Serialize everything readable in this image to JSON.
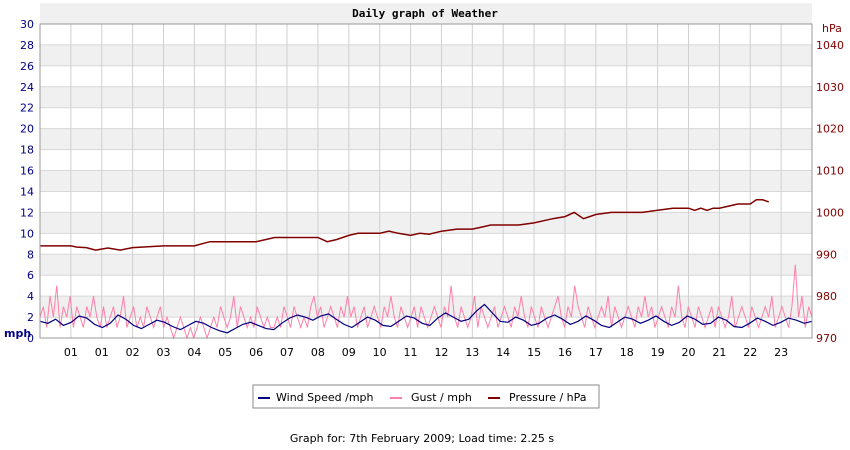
{
  "chart_data": {
    "type": "line",
    "title": "Daily graph of Weather",
    "left_axis": {
      "unit_label": "mph",
      "range": [
        0,
        30
      ],
      "ticks": [
        "0",
        "2",
        "4",
        "6",
        "8",
        "10",
        "12",
        "14",
        "16",
        "18",
        "20",
        "22",
        "24",
        "26",
        "28",
        "30"
      ],
      "color": "#000080"
    },
    "right_axis": {
      "unit_label": "hPa",
      "range": [
        970,
        1045
      ],
      "ticks": [
        "970",
        "980",
        "990",
        "1000",
        "1010",
        "1020",
        "1030",
        "1040"
      ],
      "color": "#800000"
    },
    "x_ticks": [
      "01",
      "01",
      "02",
      "03",
      "04",
      "05",
      "06",
      "07",
      "08",
      "09",
      "10",
      "11",
      "12",
      "13",
      "14",
      "15",
      "16",
      "17",
      "18",
      "19",
      "20",
      "21",
      "22",
      "23"
    ],
    "grid": true,
    "legend_position": "bottom",
    "series": [
      {
        "name": "Wind Speed /mph",
        "axis": "left",
        "color": "#000080",
        "x_range": [
          0,
          25
        ],
        "values": [
          1.6,
          1.4,
          1.8,
          1.2,
          1.5,
          2.1,
          1.9,
          1.3,
          1.0,
          1.4,
          2.2,
          1.8,
          1.2,
          0.9,
          1.3,
          1.7,
          1.5,
          1.1,
          0.8,
          1.2,
          1.6,
          1.4,
          1.0,
          0.7,
          0.5,
          0.9,
          1.3,
          1.5,
          1.2,
          0.9,
          0.8,
          1.4,
          1.9,
          2.2,
          2.0,
          1.7,
          2.1,
          2.3,
          1.8,
          1.3,
          1.0,
          1.5,
          2.0,
          1.7,
          1.2,
          1.1,
          1.6,
          2.1,
          1.9,
          1.4,
          1.2,
          1.9,
          2.4,
          2.0,
          1.6,
          1.8,
          2.6,
          3.2,
          2.4,
          1.6,
          1.5,
          2.0,
          1.7,
          1.2,
          1.4,
          1.9,
          2.2,
          1.8,
          1.3,
          1.6,
          2.1,
          1.7,
          1.2,
          1.0,
          1.5,
          2.0,
          1.8,
          1.4,
          1.7,
          2.1,
          1.6,
          1.2,
          1.5,
          2.1,
          1.8,
          1.3,
          1.4,
          2.0,
          1.7,
          1.1,
          1.0,
          1.4,
          1.9,
          1.6,
          1.2,
          1.5,
          1.9,
          1.7,
          1.4,
          1.6
        ]
      },
      {
        "name": "Gust / mph",
        "axis": "left",
        "color": "#ff7fa8",
        "x_range": [
          0,
          25
        ],
        "values": [
          2,
          3,
          1,
          4,
          2,
          5,
          1,
          3,
          2,
          4,
          1,
          3,
          2,
          1,
          3,
          2,
          4,
          2,
          1,
          3,
          1,
          2,
          3,
          1,
          2,
          4,
          1,
          2,
          3,
          1,
          2,
          1,
          3,
          2,
          1,
          2,
          3,
          1,
          2,
          1,
          0,
          1,
          2,
          1,
          0,
          1,
          0,
          1,
          2,
          1,
          0,
          1,
          2,
          1,
          3,
          2,
          1,
          2,
          4,
          1,
          3,
          2,
          1,
          2,
          1,
          3,
          2,
          1,
          2,
          1,
          1,
          2,
          1,
          3,
          2,
          1,
          3,
          2,
          1,
          2,
          1,
          3,
          4,
          2,
          3,
          1,
          2,
          3,
          2,
          1,
          3,
          2,
          4,
          2,
          3,
          1,
          2,
          3,
          1,
          2,
          3,
          2,
          1,
          3,
          2,
          4,
          2,
          1,
          3,
          2,
          1,
          2,
          3,
          1,
          3,
          2,
          1,
          2,
          3,
          2,
          1,
          3,
          2,
          5,
          2,
          1,
          3,
          2,
          1,
          2,
          4,
          1,
          3,
          2,
          1,
          2,
          3,
          1,
          2,
          3,
          2,
          1,
          3,
          2,
          4,
          2,
          1,
          3,
          2,
          1,
          3,
          2,
          1,
          2,
          3,
          4,
          2,
          1,
          3,
          2,
          5,
          3,
          2,
          1,
          3,
          2,
          1,
          2,
          3,
          2,
          4,
          1,
          3,
          2,
          1,
          2,
          3,
          2,
          1,
          3,
          2,
          4,
          2,
          3,
          1,
          2,
          3,
          2,
          1,
          3,
          2,
          5,
          2,
          1,
          3,
          2,
          1,
          3,
          2,
          1,
          2,
          3,
          1,
          3,
          2,
          1,
          2,
          4,
          1,
          2,
          3,
          2,
          1,
          3,
          2,
          1,
          2,
          3,
          2,
          4,
          1,
          2,
          3,
          2,
          1,
          3,
          7,
          2,
          4,
          1,
          3,
          2
        ]
      },
      {
        "name": "Pressure / hPa",
        "axis": "right",
        "color": "#800000",
        "x": [
          0,
          1,
          1.2,
          1.5,
          1.8,
          2.2,
          2.6,
          3,
          3.5,
          4,
          4.5,
          5,
          5.5,
          6,
          6.5,
          7,
          7.3,
          7.6,
          8,
          8.5,
          9,
          9.3,
          9.6,
          10,
          10.3,
          10.6,
          11,
          11.3,
          11.6,
          12,
          12.3,
          12.6,
          13,
          13.5,
          14,
          14.3,
          14.6,
          15,
          15.5,
          16,
          16.3,
          16.6,
          17,
          17.3,
          17.6,
          18,
          18.5,
          19,
          19.5,
          20,
          20.5,
          21,
          21.2,
          21.4,
          21.6,
          21.8,
          22,
          22.3,
          22.6,
          23,
          23.2,
          23.4,
          23.6
        ],
        "values": [
          992,
          992,
          991.7,
          991.6,
          991,
          991.5,
          991,
          991.6,
          991.8,
          992,
          992,
          992,
          993,
          993,
          993,
          993,
          993.5,
          994,
          994,
          994,
          994,
          993,
          993.5,
          994.5,
          995,
          995,
          995,
          995.5,
          995,
          994.5,
          995,
          994.8,
          995.5,
          996,
          996,
          996.5,
          997,
          997,
          997,
          997.5,
          998,
          998.5,
          999,
          1000,
          998.5,
          999.5,
          1000,
          1000,
          1000,
          1000.5,
          1001,
          1001,
          1000.5,
          1001,
          1000.5,
          1001,
          1001,
          1001.5,
          1002,
          1002,
          1003,
          1003,
          1002.5
        ]
      }
    ]
  },
  "footer": {
    "text": "Graph for: 7th February 2009; Load time: 2.25 s"
  }
}
